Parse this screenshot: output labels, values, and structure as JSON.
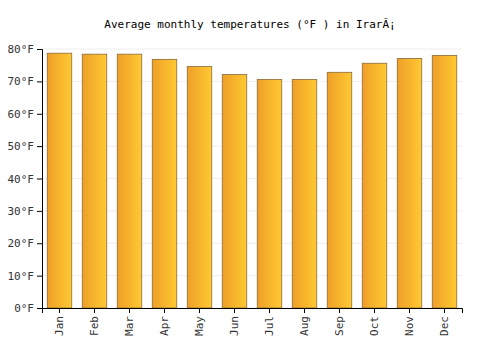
{
  "chart_data": {
    "type": "bar",
    "title": "Average monthly temperatures (°F ) in IrarÃ¡",
    "categories": [
      "Jan",
      "Feb",
      "Mar",
      "Apr",
      "May",
      "Jun",
      "Jul",
      "Aug",
      "Sep",
      "Oct",
      "Nov",
      "Dec"
    ],
    "values": [
      78.7,
      78.4,
      78.4,
      76.8,
      74.6,
      72.1,
      70.6,
      70.6,
      72.8,
      75.6,
      77.1,
      78.0
    ],
    "color": "#fba82a",
    "ylim": [
      0,
      80
    ],
    "yticks": [
      {
        "value": 0,
        "label": "0°F"
      },
      {
        "value": 10,
        "label": "10°F"
      },
      {
        "value": 20,
        "label": "20°F"
      },
      {
        "value": 30,
        "label": "30°F"
      },
      {
        "value": 40,
        "label": "40°F"
      },
      {
        "value": 50,
        "label": "50°F"
      },
      {
        "value": 60,
        "label": "60°F"
      },
      {
        "value": 70,
        "label": "70°F"
      },
      {
        "value": 80,
        "label": "80°F"
      }
    ],
    "grid": true
  }
}
